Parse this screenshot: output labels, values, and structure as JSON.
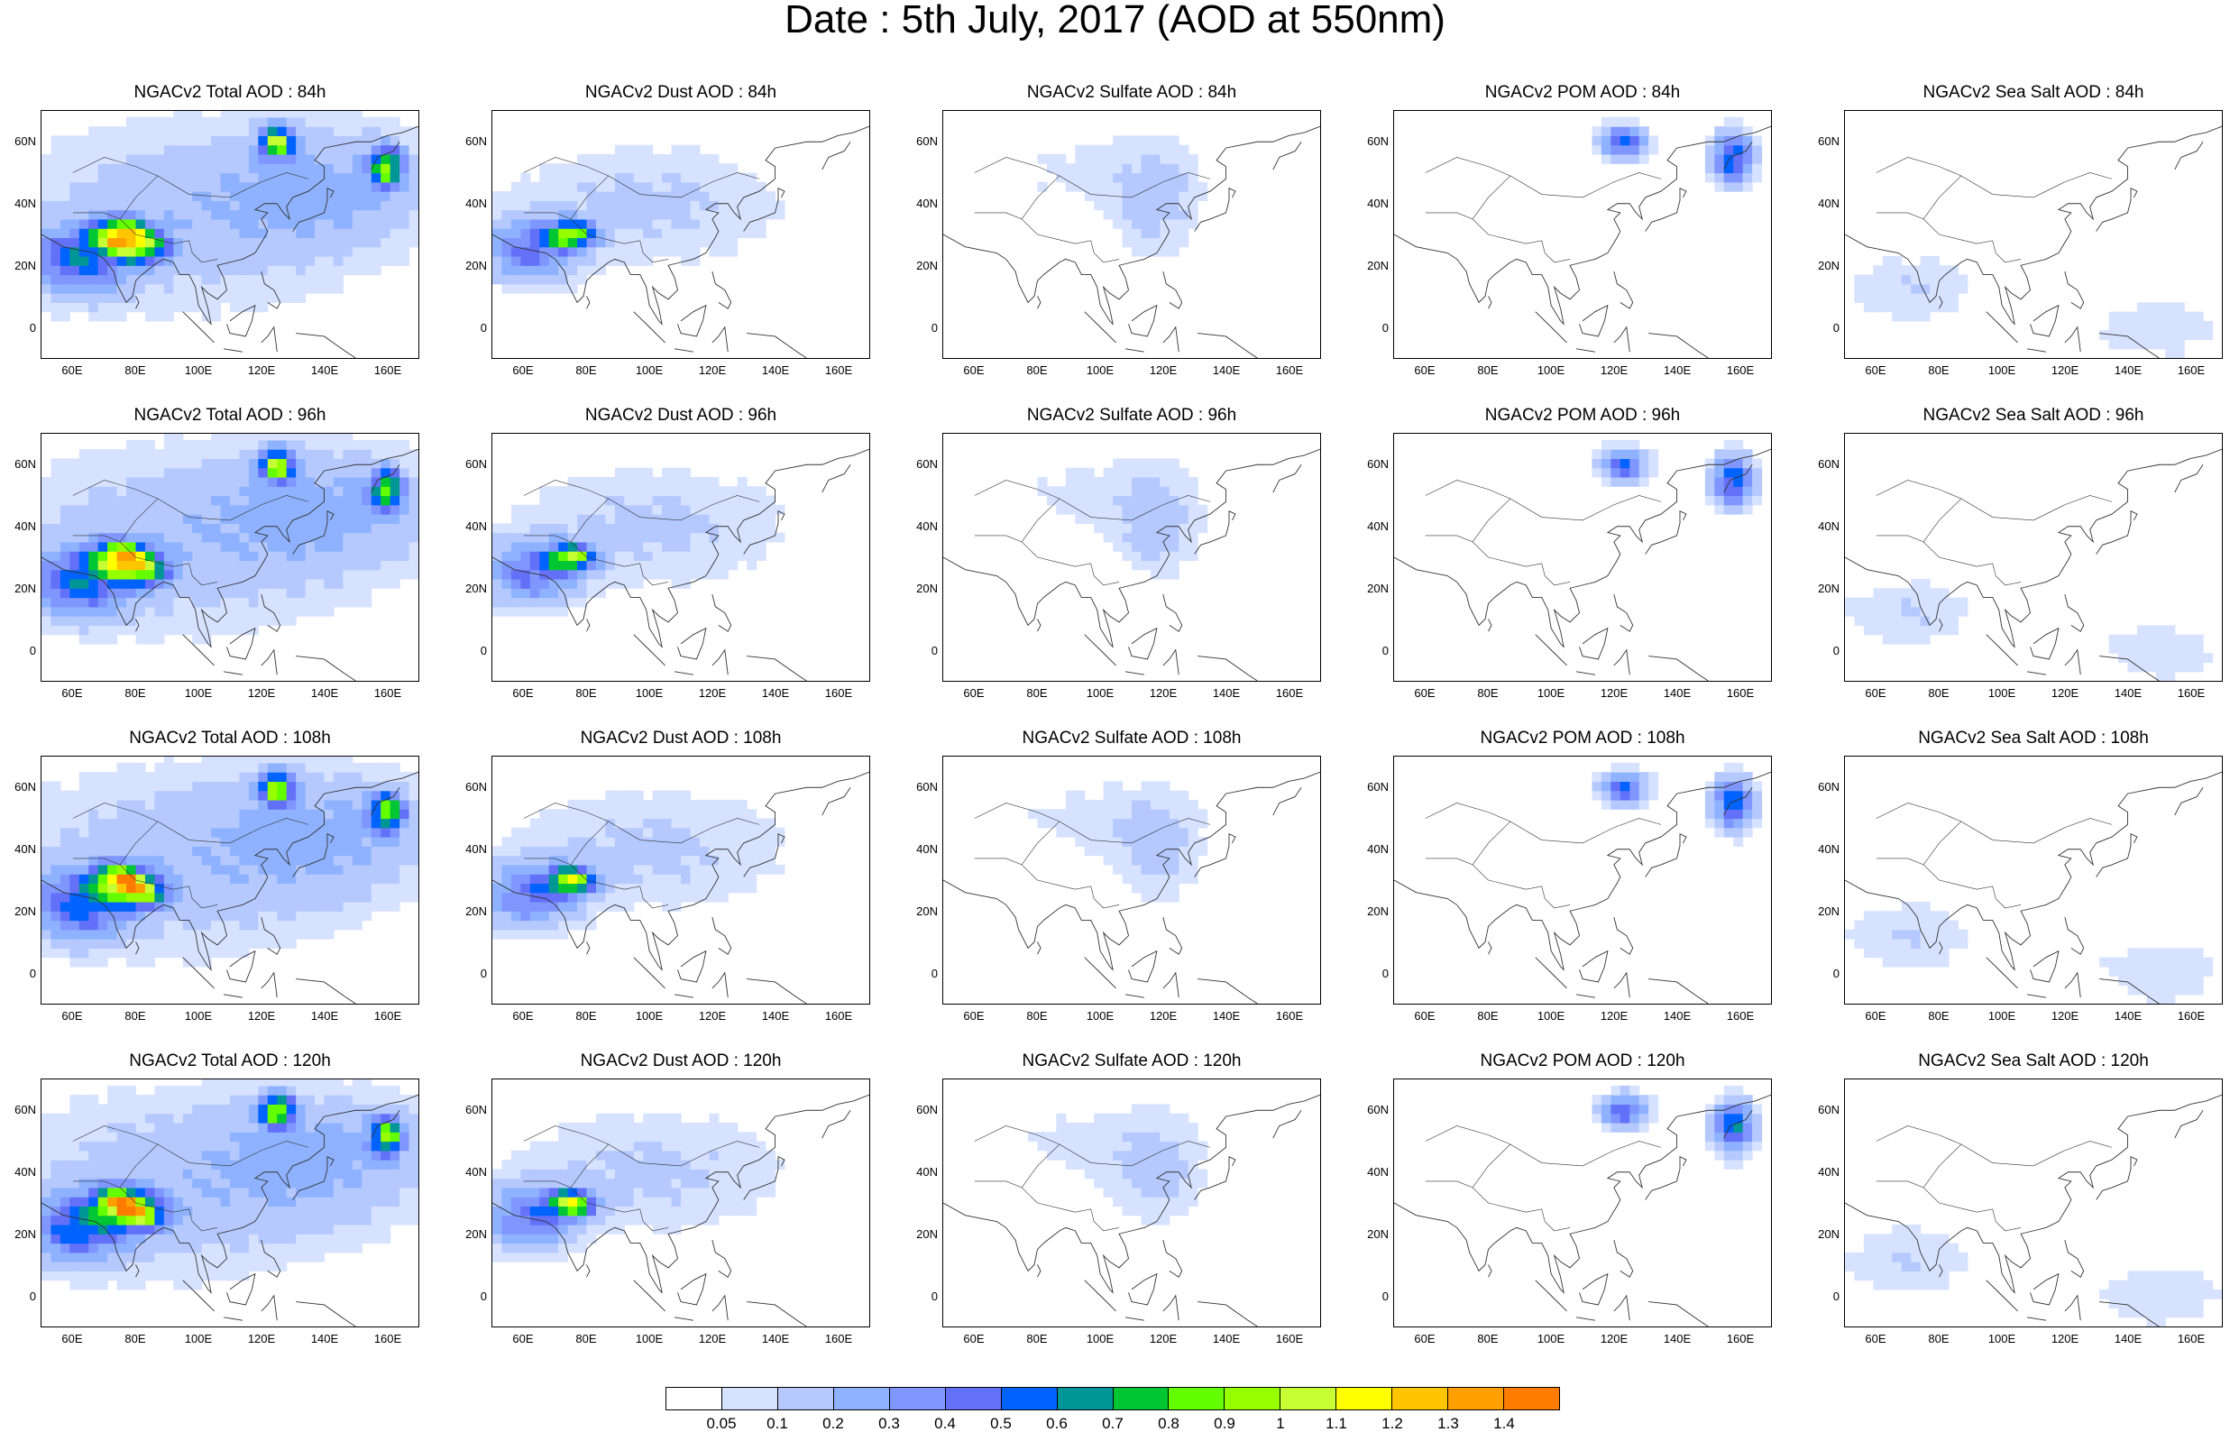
{
  "title": "Date : 5th July, 2017 (AOD at 550nm)",
  "axes": {
    "yticks": [
      "60N",
      "40N",
      "20N",
      "0"
    ],
    "xticks": [
      "60E",
      "80E",
      "100E",
      "120E",
      "140E",
      "160E"
    ]
  },
  "colorbar": {
    "colors": [
      "#ffffff",
      "#d6e2ff",
      "#b5c9ff",
      "#8eb2ff",
      "#7f96ff",
      "#6370f8",
      "#0063ff",
      "#009696",
      "#00c633",
      "#63ff00",
      "#96ff00",
      "#c6ff33",
      "#ffff00",
      "#ffc600",
      "#ffa000",
      "#ff7c00",
      "#ff1900"
    ],
    "labels": [
      "0.05",
      "0.1",
      "0.2",
      "0.3",
      "0.4",
      "0.5",
      "0.6",
      "0.7",
      "0.8",
      "0.9",
      "1",
      "1.1",
      "1.2",
      "1.3",
      "1.4"
    ]
  },
  "panels": [
    {
      "title": "NGACv2 Total AOD : 84h"
    },
    {
      "title": "NGACv2 Dust AOD : 84h"
    },
    {
      "title": "NGACv2 Sulfate AOD : 84h"
    },
    {
      "title": "NGACv2 POM AOD : 84h"
    },
    {
      "title": "NGACv2 Sea Salt AOD : 84h"
    },
    {
      "title": "NGACv2 Total AOD : 96h"
    },
    {
      "title": "NGACv2 Dust AOD : 96h"
    },
    {
      "title": "NGACv2 Sulfate AOD : 96h"
    },
    {
      "title": "NGACv2 POM AOD : 96h"
    },
    {
      "title": "NGACv2 Sea Salt AOD : 96h"
    },
    {
      "title": "NGACv2 Total AOD : 108h"
    },
    {
      "title": "NGACv2 Dust AOD : 108h"
    },
    {
      "title": "NGACv2 Sulfate AOD : 108h"
    },
    {
      "title": "NGACv2 POM AOD : 108h"
    },
    {
      "title": "NGACv2 Sea Salt AOD : 108h"
    },
    {
      "title": "NGACv2 Total AOD : 120h"
    },
    {
      "title": "NGACv2 Dust AOD : 120h"
    },
    {
      "title": "NGACv2 Sulfate AOD : 120h"
    },
    {
      "title": "NGACv2 POM AOD : 120h"
    },
    {
      "title": "NGACv2 Sea Salt  AOD : 120h"
    }
  ],
  "chart_data": {
    "type": "heatmap",
    "title": "Date : 5th July, 2017 (AOD at 550nm)",
    "projection": "lat-lon",
    "lon_range": [
      50,
      170
    ],
    "lat_range": [
      -10,
      70
    ],
    "xticks": [
      "60E",
      "80E",
      "100E",
      "120E",
      "140E",
      "160E"
    ],
    "yticks": [
      "60N",
      "40N",
      "20N",
      "0"
    ],
    "variables": [
      "Total AOD",
      "Dust AOD",
      "Sulfate AOD",
      "POM AOD",
      "Sea Salt AOD"
    ],
    "forecast_hours": [
      "84h",
      "96h",
      "108h",
      "120h"
    ],
    "colorbar_levels": [
      0.05,
      0.1,
      0.2,
      0.3,
      0.4,
      0.5,
      0.6,
      0.7,
      0.8,
      0.9,
      1,
      1.1,
      1.2,
      1.3,
      1.4
    ],
    "features": {
      "Total AOD": [
        {
          "lon": 62,
          "lat": 22,
          "sx": 14,
          "sy": 10,
          "val": 0.5
        },
        {
          "lon": 75,
          "lat": 30,
          "sx": 8,
          "sy": 5,
          "val": 1.0
        },
        {
          "lon": 82,
          "lat": 26,
          "sx": 8,
          "sy": 5,
          "val": 0.7
        },
        {
          "lon": 90,
          "lat": 35,
          "sx": 55,
          "sy": 30,
          "val": 0.15
        },
        {
          "lon": 140,
          "lat": 45,
          "sx": 35,
          "sy": 20,
          "val": 0.2
        },
        {
          "lon": 125,
          "lat": 60,
          "sx": 5,
          "sy": 5,
          "val": 0.9
        },
        {
          "lon": 160,
          "lat": 52,
          "sx": 5,
          "sy": 6,
          "val": 0.8
        }
      ],
      "Dust AOD": [
        {
          "lon": 62,
          "lat": 25,
          "sx": 14,
          "sy": 10,
          "val": 0.4
        },
        {
          "lon": 75,
          "lat": 30,
          "sx": 7,
          "sy": 4,
          "val": 0.9
        },
        {
          "lon": 100,
          "lat": 40,
          "sx": 45,
          "sy": 20,
          "val": 0.12
        }
      ],
      "Sulfate AOD": [
        {
          "lon": 118,
          "lat": 40,
          "sx": 14,
          "sy": 18,
          "val": 0.12
        },
        {
          "lon": 95,
          "lat": 50,
          "sx": 35,
          "sy": 15,
          "val": 0.06
        }
      ],
      "POM AOD": [
        {
          "lon": 123,
          "lat": 60,
          "sx": 7,
          "sy": 5,
          "val": 0.5
        },
        {
          "lon": 158,
          "lat": 55,
          "sx": 6,
          "sy": 8,
          "val": 0.6
        }
      ],
      "Sea Salt AOD": [
        {
          "lon": 70,
          "lat": 12,
          "sx": 22,
          "sy": 12,
          "val": 0.1
        },
        {
          "lon": 150,
          "lat": 0,
          "sx": 25,
          "sy": 12,
          "val": 0.08
        }
      ]
    }
  }
}
